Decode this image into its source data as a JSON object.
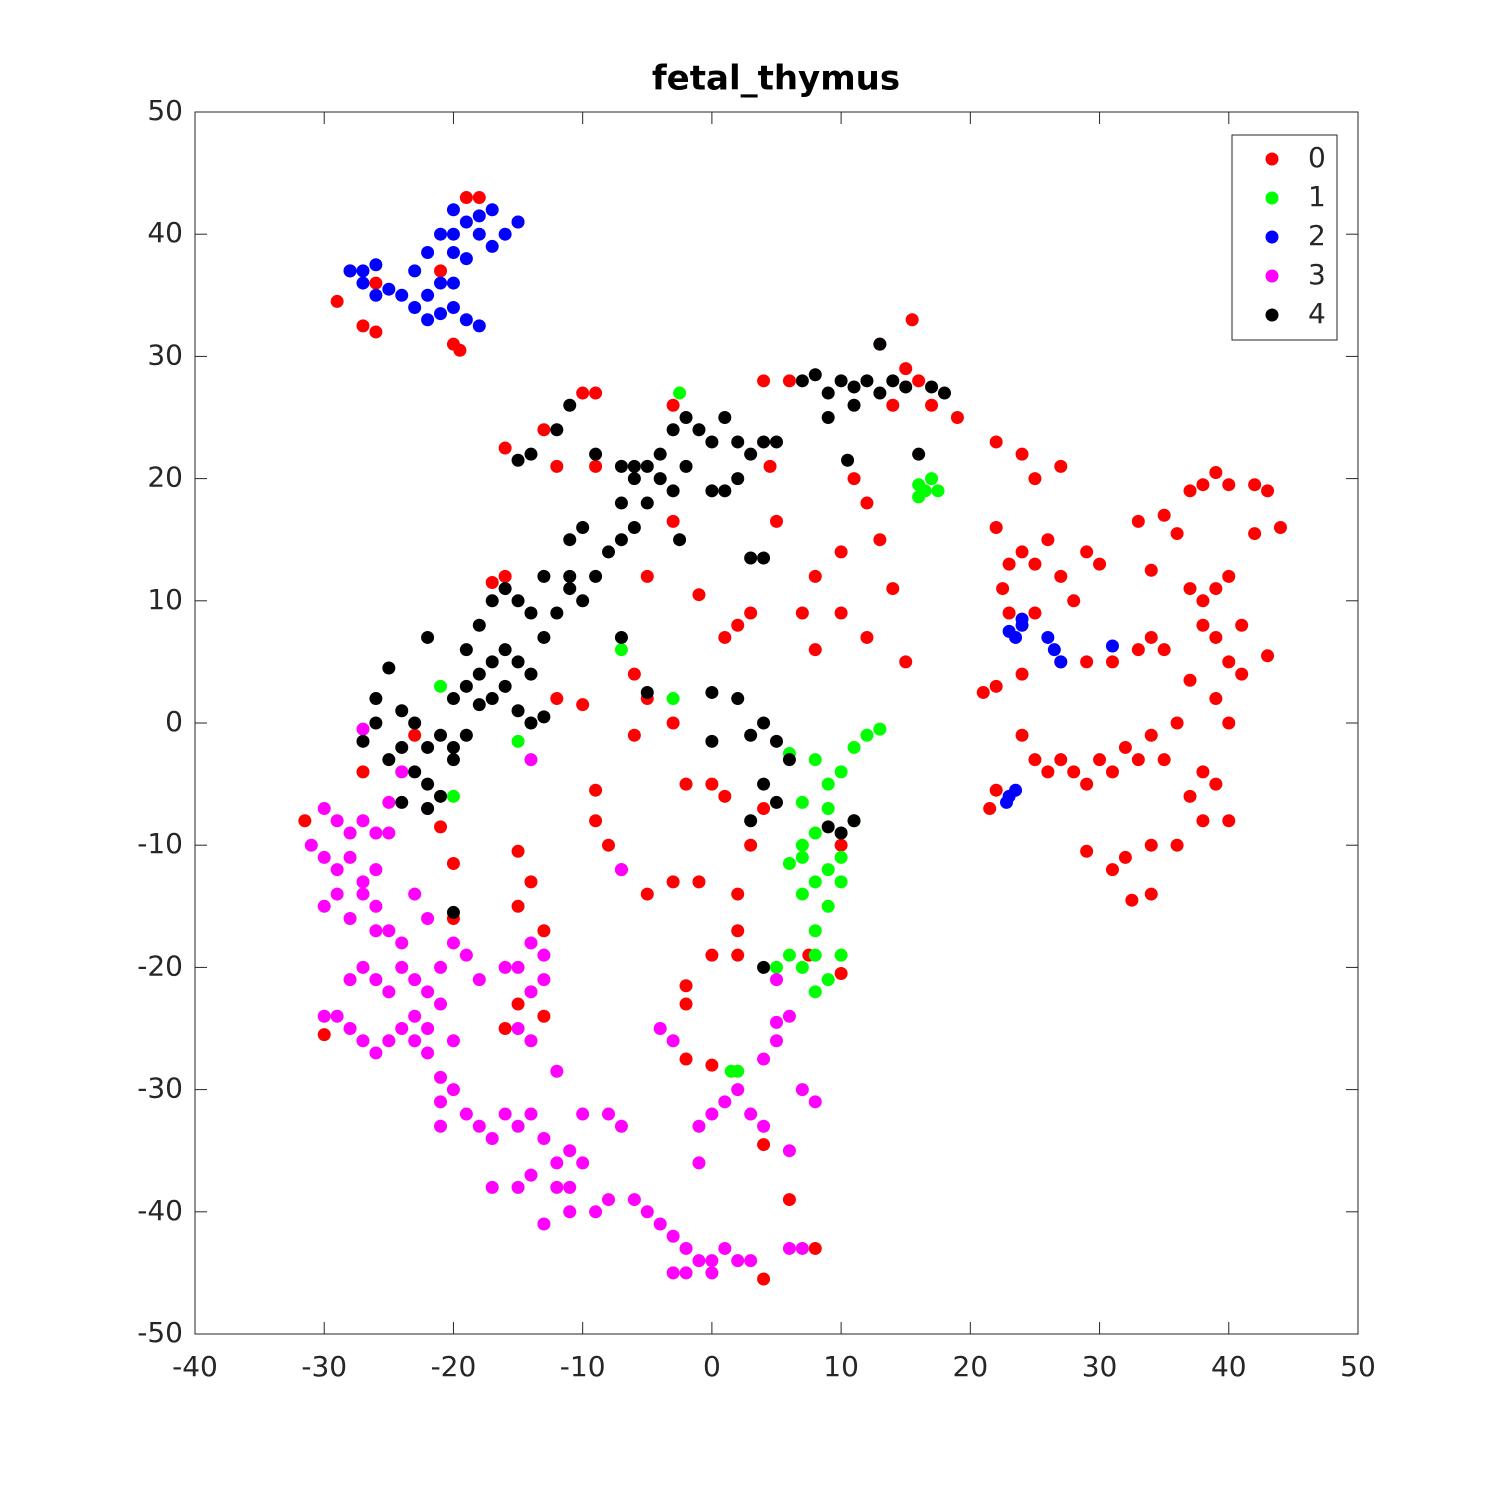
{
  "chart_data": {
    "type": "scatter",
    "title": "fetal_thymus",
    "xlim": [
      -40,
      50
    ],
    "xticks": [
      -40,
      -30,
      -20,
      -10,
      0,
      10,
      20,
      30,
      40,
      50
    ],
    "ylim": [
      -50,
      50
    ],
    "yticks": [
      -50,
      -40,
      -30,
      -20,
      -10,
      0,
      10,
      20,
      30,
      40,
      50
    ],
    "grid": false,
    "legend": "northeast",
    "series": [
      {
        "name": "0",
        "color": "#ff0000",
        "x": [
          33,
          35,
          37,
          38,
          39,
          40,
          42,
          43,
          44,
          42,
          36,
          34,
          37,
          38,
          39,
          40,
          38,
          39,
          41,
          34,
          33,
          35,
          40,
          41,
          43,
          37,
          39,
          40,
          36,
          34,
          32,
          30,
          28,
          27,
          26,
          25,
          24,
          29,
          31,
          33,
          35,
          38,
          39,
          37,
          38,
          40,
          36,
          34,
          32,
          31,
          32.5,
          34,
          29,
          21.5,
          22,
          22,
          23,
          22.5,
          23,
          25,
          24,
          25,
          26,
          27,
          29,
          30,
          28,
          27,
          29,
          31,
          24,
          22,
          21,
          25,
          27,
          24,
          22,
          19,
          17,
          16,
          15,
          14,
          15.5,
          13,
          11,
          12,
          13,
          10,
          8,
          7,
          8,
          10,
          12,
          14,
          15,
          5,
          4.5,
          4,
          6,
          3,
          1,
          2,
          -1,
          -3,
          -5,
          -6,
          -5,
          -3,
          -6,
          -2,
          0,
          1,
          -3,
          -5,
          -1,
          2,
          2,
          0,
          2,
          3,
          4,
          7.5,
          10,
          10,
          -9,
          -9,
          -8,
          -7,
          -15,
          -14,
          -15,
          -13,
          -15,
          -16,
          -13,
          -2,
          -2,
          -2,
          0,
          4,
          6,
          8,
          4,
          -12,
          -10,
          -16,
          -17,
          -10,
          -9,
          -13,
          -16,
          -12,
          -9,
          -3,
          -20,
          -19.5,
          -28,
          -26,
          -29,
          -27,
          -26,
          -21,
          -19,
          -18,
          -15,
          -23,
          -27,
          -20,
          -20,
          -21,
          -31.5,
          -30
        ],
        "values": [
          16.5,
          17,
          19,
          19.5,
          20.5,
          19.5,
          19.5,
          19,
          16,
          15.5,
          15.5,
          12.5,
          11,
          10,
          11,
          12,
          8,
          7,
          8,
          7,
          6,
          6,
          5,
          4,
          5.5,
          3.5,
          2,
          0,
          0,
          -1,
          -2,
          -3,
          -4,
          -3,
          -4,
          -3,
          -1,
          -5,
          -4,
          -3,
          -3,
          -4,
          -5,
          -6,
          -8,
          -8,
          -10,
          -10,
          -11,
          -12,
          -14.5,
          -14,
          -10.5,
          -7,
          -5.5,
          16,
          13,
          11,
          9,
          9,
          14,
          13,
          15,
          12,
          14,
          13,
          10,
          5,
          5,
          5,
          4,
          3,
          2.5,
          20,
          21,
          22,
          23,
          25,
          26,
          28,
          29,
          26,
          33,
          31,
          20,
          18,
          15,
          14,
          12,
          9,
          6,
          9,
          7,
          11,
          5,
          16.5,
          21,
          28,
          28,
          9,
          7,
          8,
          10.5,
          16.5,
          12,
          4,
          2,
          0,
          -1,
          -5,
          -5,
          -6,
          -13,
          -14,
          -13,
          -14,
          -17,
          -19,
          -19,
          -10,
          -7,
          -19,
          -20.5,
          -10,
          -8,
          -5.5,
          -10,
          -12,
          -10.5,
          -13,
          -15,
          -17,
          -23,
          -25,
          -24,
          -21.5,
          -23,
          -27.5,
          -28,
          -34.5,
          -39,
          -43,
          -45.5,
          2,
          1.5,
          12,
          11.5,
          27,
          27,
          24,
          22.5,
          21,
          21,
          26,
          31,
          30.5,
          37,
          36,
          34.5,
          32.5,
          32,
          37,
          43,
          43,
          41,
          -1,
          -4,
          -11.5,
          -16,
          -8.5,
          -8,
          -25.5
        ]
      },
      {
        "name": "1",
        "color": "#00ff00",
        "x": [
          8,
          9,
          10,
          11,
          12,
          13,
          9,
          8,
          7,
          8,
          9,
          10,
          7,
          9,
          10,
          8,
          8,
          7,
          9,
          8,
          6,
          5,
          10,
          7,
          11,
          16,
          17,
          16.5,
          17.5,
          16,
          -2.5,
          -3,
          -7,
          -21,
          -15,
          -20,
          1.5,
          2,
          6,
          7,
          6
        ],
        "values": [
          -3,
          -5,
          -4,
          -2,
          -1,
          -0.5,
          -7,
          -9,
          -11,
          -13,
          -12,
          -11,
          -14,
          -15,
          -13,
          -17,
          -19,
          -20,
          -21,
          -22,
          -19,
          -20,
          -19,
          -10,
          -8,
          19.5,
          20,
          19,
          19,
          18.5,
          27,
          2,
          6,
          3,
          -1.5,
          -6,
          -28.5,
          -28.5,
          -11.5,
          -6.5,
          -2.5
        ]
      },
      {
        "name": "2",
        "color": "#0000ff",
        "x": [
          -28,
          -27,
          -26,
          -25,
          -24,
          -23,
          -22,
          -21,
          -20,
          -19,
          -18,
          -21,
          -22,
          -20,
          -19,
          -20,
          -19,
          -18,
          -17,
          -16,
          -15,
          -20,
          -18,
          -17,
          -22,
          -23,
          -26,
          -27,
          -21,
          -20,
          23,
          24,
          23.5,
          24,
          26,
          26.5,
          27,
          31,
          23,
          23.5,
          22.8
        ],
        "values": [
          37,
          36,
          35,
          35.5,
          35,
          34,
          33,
          33.5,
          34,
          33,
          32.5,
          36,
          35,
          36,
          38,
          40,
          41,
          40,
          39,
          40,
          41,
          42,
          41.5,
          42,
          38.5,
          37,
          37.5,
          37,
          40,
          38.5,
          7.5,
          8,
          7,
          8.5,
          7,
          6,
          5,
          6.3,
          -6,
          -5.5,
          -6.5
        ]
      },
      {
        "name": "3",
        "color": "#ff00ff",
        "x": [
          -30,
          -29,
          -28,
          -27,
          -26,
          -25,
          -31,
          -30,
          -29,
          -28,
          -27,
          -26,
          -29,
          -30,
          -28,
          -27,
          -26,
          -25,
          -24,
          -26,
          -27,
          -28,
          -26,
          -25,
          -24,
          -23,
          -22,
          -23,
          -24,
          -25,
          -26,
          -27,
          -28,
          -29,
          -30,
          -23,
          -22,
          -22,
          -21,
          -21,
          -22,
          -20,
          -19,
          -23,
          -20,
          -21,
          -20,
          -21,
          -21,
          -19,
          -18,
          -17,
          -16,
          -15,
          -14,
          -13,
          -12,
          -11,
          -10,
          -11,
          -12,
          -14,
          -15,
          -17,
          -13,
          -11,
          -9,
          -8,
          -10,
          -8,
          -7,
          -6,
          -5,
          -4,
          -3,
          -2,
          -1,
          0,
          1,
          2,
          3,
          -3,
          -2,
          0,
          -1,
          -1,
          0,
          1,
          2,
          3,
          4,
          4,
          5,
          6,
          5,
          5,
          7,
          8,
          6,
          7,
          6,
          -3,
          -4,
          -15,
          -14,
          -13,
          -15,
          -14,
          -13,
          -14,
          -16,
          -7,
          -14,
          -24,
          -25,
          -22,
          -27,
          -18,
          -12
        ],
        "values": [
          -7,
          -8,
          -9,
          -8,
          -9,
          -9,
          -10,
          -11,
          -12,
          -11,
          -13,
          -12,
          -14,
          -15,
          -16,
          -14,
          -15,
          -17,
          -18,
          -17,
          -20,
          -21,
          -21,
          -22,
          -20,
          -21,
          -22,
          -24,
          -25,
          -26,
          -27,
          -26,
          -25,
          -24,
          -24,
          -26,
          -27,
          -25,
          -23,
          -20,
          -16,
          -18,
          -19,
          -14,
          -26,
          -29,
          -30,
          -31,
          -33,
          -32,
          -33,
          -34,
          -32,
          -33,
          -32,
          -34,
          -36,
          -35,
          -36,
          -38,
          -38,
          -37,
          -38,
          -38,
          -41,
          -40,
          -40,
          -39,
          -32,
          -32,
          -33,
          -39,
          -40,
          -41,
          -42,
          -43,
          -44,
          -44,
          -43,
          -44,
          -44,
          -45,
          -45,
          -45,
          -36,
          -33,
          -32,
          -31,
          -30,
          -32,
          -33,
          -27.5,
          -26,
          -24,
          -21,
          -24.5,
          -30,
          -31,
          -35,
          -43,
          -43,
          -26,
          -25,
          -20,
          -18,
          -19,
          -25,
          -22,
          -21,
          -26,
          -20,
          -12,
          -3,
          -4,
          -6.5,
          -7,
          -0.5,
          -21,
          -28.5
        ]
      },
      {
        "name": "4",
        "color": "#000000",
        "x": [
          -27,
          -26,
          -26,
          -25,
          -24,
          -23,
          -24,
          -25,
          -23,
          -22,
          -21,
          -20,
          -22,
          -24,
          -21,
          -20,
          -19,
          -20,
          -19,
          -18,
          -17,
          -16,
          -15,
          -14,
          -16,
          -17,
          -18,
          -15,
          -14,
          -13,
          -19,
          -18,
          -17,
          -16,
          -15,
          -14,
          -13,
          -12,
          -11,
          -10,
          -9,
          -8,
          -7,
          -6,
          -7,
          -6,
          -5,
          -4,
          -3,
          -2,
          -1,
          0,
          1,
          2,
          3,
          -4,
          -5,
          -2,
          -3,
          0,
          1,
          2,
          -9,
          -11,
          -12,
          -14,
          -15,
          -10,
          -11,
          -13,
          -11,
          -22,
          -7,
          -5,
          0,
          2,
          4,
          5,
          3,
          0,
          4,
          5,
          6,
          3,
          10,
          11,
          9,
          4,
          -20,
          -22,
          10,
          11,
          9,
          8,
          7,
          11,
          12,
          13,
          14,
          15,
          17,
          18,
          13,
          16,
          10.5,
          3,
          4,
          -6,
          -7,
          -2.5,
          4,
          5,
          9
        ],
        "values": [
          -1.5,
          0,
          2,
          4.5,
          1,
          0,
          -2,
          -3,
          -4,
          -2,
          -1,
          -2,
          -5,
          -6.5,
          -6,
          -3,
          -1,
          2,
          3,
          4,
          5,
          6,
          5,
          4,
          3,
          2,
          1.5,
          1,
          0,
          0.5,
          6,
          8,
          10,
          11,
          10,
          9,
          7,
          9,
          11,
          10,
          12,
          14,
          15,
          16,
          18,
          20,
          21,
          22,
          24,
          25,
          24,
          23,
          25,
          23,
          22,
          20,
          18,
          21,
          19,
          19,
          19,
          20,
          22,
          26,
          24,
          22,
          21.5,
          16,
          15,
          12,
          12,
          7,
          7,
          2.5,
          2.5,
          2,
          0,
          -1.5,
          -1,
          -1.5,
          -5,
          -6.5,
          -3,
          -8,
          -9,
          -8,
          -8.5,
          -20,
          -15.5,
          -7,
          28,
          27.5,
          27,
          28.5,
          28,
          26,
          28,
          27,
          28,
          27.5,
          27.5,
          27,
          31,
          22,
          21.5,
          13.5,
          13.5,
          21,
          21,
          15,
          23,
          23,
          25
        ]
      }
    ]
  }
}
